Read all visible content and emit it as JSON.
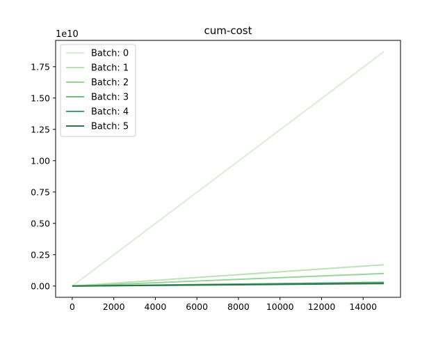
{
  "chart_data": {
    "type": "line",
    "title": "cum-cost",
    "xlabel": "",
    "ylabel": "",
    "y_offset_label": "1e10",
    "xlim": [
      -800,
      15800
    ],
    "ylim": [
      -0.09,
      1.96
    ],
    "xticks": [
      0,
      2000,
      4000,
      6000,
      8000,
      10000,
      12000,
      14000
    ],
    "xtick_labels": [
      "0",
      "2000",
      "4000",
      "6000",
      "8000",
      "10000",
      "12000",
      "14000"
    ],
    "yticks": [
      0.0,
      0.25,
      0.5,
      0.75,
      1.0,
      1.25,
      1.5,
      1.75
    ],
    "ytick_labels": [
      "0.00",
      "0.25",
      "0.50",
      "0.75",
      "1.00",
      "1.25",
      "1.50",
      "1.75"
    ],
    "grid": false,
    "legend_position": "upper-left",
    "x": [
      0,
      15000
    ],
    "series": [
      {
        "name": "Batch: 0",
        "color": "#d6efd3",
        "values": [
          0,
          1.87
        ]
      },
      {
        "name": "Batch: 1",
        "color": "#b9e3b3",
        "values": [
          0,
          0.17
        ]
      },
      {
        "name": "Batch: 2",
        "color": "#9ad39a",
        "values": [
          0,
          0.1
        ]
      },
      {
        "name": "Batch: 3",
        "color": "#72bb85",
        "values": [
          0,
          0.03
        ]
      },
      {
        "name": "Batch: 4",
        "color": "#459f6c",
        "values": [
          0,
          0.025
        ]
      },
      {
        "name": "Batch: 5",
        "color": "#2a7445",
        "values": [
          0,
          0.02
        ]
      }
    ]
  }
}
